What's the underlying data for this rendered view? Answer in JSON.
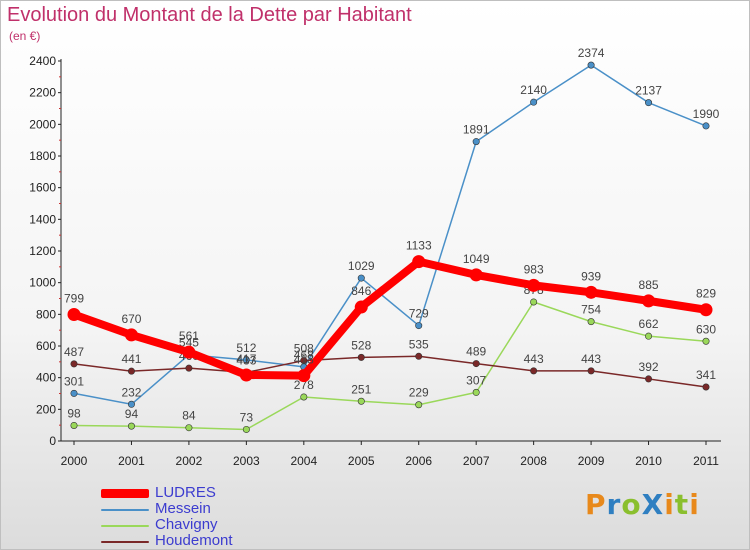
{
  "header": {
    "title": "Evolution du Montant de la Dette par Habitant",
    "subtitle": "(en €)"
  },
  "logo": {
    "text": "ProXiti",
    "letters": [
      "P",
      "r",
      "o",
      "X",
      "i",
      "t",
      "i"
    ],
    "colors": [
      "#e8891b",
      "#2f7fc1",
      "#8abf2e",
      "#2f7fc1",
      "#e8891b",
      "#8abf2e",
      "#e8891b"
    ]
  },
  "chart_data": {
    "type": "line",
    "title": "Evolution du Montant de la Dette par Habitant",
    "subtitle": "(en €)",
    "xlabel": "",
    "ylabel": "",
    "ylim": [
      0,
      2400
    ],
    "yticks": [
      0,
      200,
      400,
      600,
      800,
      1000,
      1200,
      1400,
      1600,
      1800,
      2000,
      2200,
      2400
    ],
    "grid": false,
    "legend_position": "bottom-left",
    "x": [
      "2000",
      "2001",
      "2002",
      "2003",
      "2004",
      "2005",
      "2006",
      "2007",
      "2008",
      "2009",
      "2010",
      "2011"
    ],
    "series": [
      {
        "name": "Messein",
        "color": "#4a90c8",
        "values": [
          301,
          232,
          545,
          512,
          468,
          1029,
          729,
          1891,
          2140,
          2374,
          2137,
          1990
        ]
      },
      {
        "name": "Chavigny",
        "color": "#9ad85a",
        "values": [
          98,
          94,
          84,
          73,
          278,
          251,
          229,
          307,
          878,
          754,
          662,
          630
        ]
      },
      {
        "name": "Houdemont",
        "color": "#7a2828",
        "values": [
          487,
          441,
          460,
          433,
          508,
          528,
          535,
          489,
          443,
          443,
          392,
          341
        ]
      },
      {
        "name": "LUDRES",
        "color": "#ff0000",
        "values": [
          799,
          670,
          561,
          417,
          413,
          846,
          1133,
          1049,
          983,
          939,
          885,
          829
        ]
      }
    ]
  }
}
